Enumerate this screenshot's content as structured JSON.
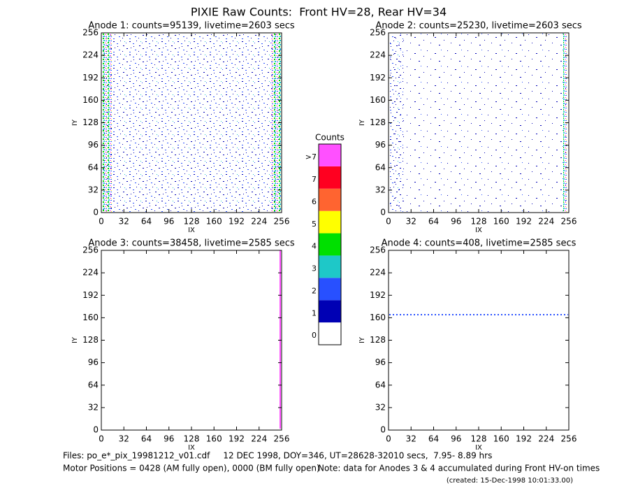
{
  "title": "PIXIE Raw Counts:  Front HV=28, Rear HV=34",
  "panels": [
    {
      "title": "Anode 1: counts=95139, livetime=2603 secs",
      "xlabel": "IX",
      "ylabel": "IY",
      "xlim": [
        0,
        256
      ],
      "ylim": [
        0,
        256
      ],
      "xticks": [
        0,
        32,
        64,
        96,
        128,
        160,
        192,
        224,
        256
      ],
      "yticks": [
        0,
        32,
        64,
        96,
        128,
        160,
        192,
        224,
        256
      ]
    },
    {
      "title": "Anode 2: counts=25230, livetime=2603 secs",
      "xlabel": "IX",
      "ylabel": "IY",
      "xlim": [
        0,
        256
      ],
      "ylim": [
        0,
        256
      ],
      "xticks": [
        0,
        32,
        64,
        96,
        128,
        160,
        192,
        224,
        256
      ],
      "yticks": [
        0,
        32,
        64,
        96,
        128,
        160,
        192,
        224,
        256
      ]
    },
    {
      "title": "Anode 3: counts=38458, livetime=2585 secs",
      "xlabel": "IX",
      "ylabel": "IY",
      "xlim": [
        0,
        256
      ],
      "ylim": [
        0,
        256
      ],
      "xticks": [
        0,
        32,
        64,
        96,
        128,
        160,
        192,
        224,
        256
      ],
      "yticks": [
        0,
        32,
        64,
        96,
        128,
        160,
        192,
        224,
        256
      ]
    },
    {
      "title": "Anode 4: counts=408, livetime=2585 secs",
      "xlabel": "IX",
      "ylabel": "IY",
      "xlim": [
        0,
        256
      ],
      "ylim": [
        0,
        256
      ],
      "xticks": [
        0,
        32,
        64,
        96,
        128,
        160,
        192,
        224,
        256
      ],
      "yticks": [
        0,
        32,
        64,
        96,
        128,
        160,
        192,
        224,
        256
      ]
    }
  ],
  "colorbar": {
    "title": "Counts",
    "labels": [
      "0",
      "1",
      "2",
      "3",
      "4",
      "5",
      "6",
      "7",
      ">7"
    ],
    "colors": [
      "#ffffff",
      "#0000b4",
      "#2850ff",
      "#1ec8c8",
      "#00e000",
      "#ffff00",
      "#ff6430",
      "#ff0020",
      "#ff50ff"
    ]
  },
  "footer": {
    "files": "Files: po_e*_pix_19981212_v01.cdf     12 DEC 1998, DOY=346, UT=28628-32010 secs,  7.95- 8.89 hrs",
    "motor": "Motor Positions = 0428 (AM fully open), 0000 (BM fully open)",
    "note": "Note: data for Anodes 3 & 4 accumulated during Front HV-on times",
    "created": "(created: 15-Dec-1998 10:01:33.00)"
  }
}
